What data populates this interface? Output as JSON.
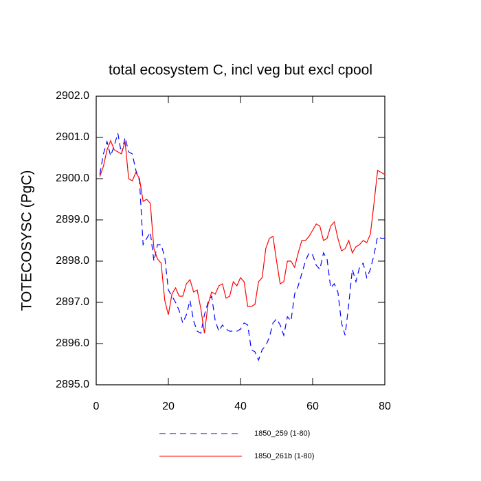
{
  "chart_data": {
    "type": "line",
    "title": "total ecosystem C, incl veg but excl cpool",
    "y_label": "TOTECOSYSC  (PgC)",
    "x": [
      1,
      2,
      3,
      4,
      5,
      6,
      7,
      8,
      9,
      10,
      11,
      12,
      13,
      14,
      15,
      16,
      17,
      18,
      19,
      20,
      21,
      22,
      23,
      24,
      25,
      26,
      27,
      28,
      29,
      30,
      31,
      32,
      33,
      34,
      35,
      36,
      37,
      38,
      39,
      40,
      41,
      42,
      43,
      44,
      45,
      46,
      47,
      48,
      49,
      50,
      51,
      52,
      53,
      54,
      55,
      56,
      57,
      58,
      59,
      60,
      61,
      62,
      63,
      64,
      65,
      66,
      67,
      68,
      69,
      70,
      71,
      72,
      73,
      74,
      75,
      76,
      77,
      78,
      79,
      80
    ],
    "series": [
      {
        "name": "1850_259 (1-80)",
        "color": "#0000ff",
        "style": "dashed",
        "values": [
          2900.1,
          2900.6,
          2900.9,
          2900.55,
          2900.8,
          2901.1,
          2900.6,
          2901.0,
          2900.65,
          2900.6,
          2900.2,
          2899.95,
          2898.4,
          2898.55,
          2898.7,
          2898.0,
          2898.4,
          2898.4,
          2898.1,
          2897.3,
          2897.15,
          2897.0,
          2896.8,
          2896.5,
          2896.7,
          2897.05,
          2896.55,
          2896.3,
          2896.25,
          2896.7,
          2897.0,
          2897.15,
          2896.55,
          2896.3,
          2896.45,
          2896.35,
          2896.3,
          2896.3,
          2896.3,
          2896.35,
          2896.5,
          2896.45,
          2895.85,
          2895.8,
          2895.6,
          2895.85,
          2895.95,
          2896.15,
          2896.5,
          2896.6,
          2896.45,
          2896.2,
          2896.65,
          2896.55,
          2897.2,
          2897.4,
          2897.7,
          2898.0,
          2898.2,
          2898.15,
          2897.9,
          2897.8,
          2898.2,
          2898.05,
          2897.35,
          2897.45,
          2897.25,
          2896.5,
          2896.2,
          2896.95,
          2897.8,
          2897.5,
          2897.85,
          2897.95,
          2897.6,
          2897.8,
          2898.15,
          2898.6,
          2898.55,
          2898.55
        ]
      },
      {
        "name": "1850_261b (1-80)",
        "color": "#ff0000",
        "style": "solid",
        "values": [
          2900.05,
          2900.3,
          2900.7,
          2900.92,
          2900.7,
          2900.65,
          2900.6,
          2900.9,
          2900.0,
          2899.95,
          2900.15,
          2900.0,
          2899.45,
          2899.5,
          2899.4,
          2898.3,
          2898.05,
          2897.95,
          2897.05,
          2896.7,
          2897.2,
          2897.35,
          2897.15,
          2897.15,
          2897.45,
          2897.55,
          2897.25,
          2897.3,
          2896.85,
          2896.25,
          2896.95,
          2897.25,
          2897.2,
          2897.4,
          2897.45,
          2897.1,
          2897.15,
          2897.5,
          2897.4,
          2897.6,
          2897.5,
          2896.9,
          2896.9,
          2896.95,
          2897.5,
          2897.6,
          2898.3,
          2898.55,
          2898.6,
          2898.0,
          2897.45,
          2897.5,
          2898.0,
          2898.0,
          2897.85,
          2898.2,
          2898.5,
          2898.5,
          2898.6,
          2898.75,
          2898.9,
          2898.85,
          2898.5,
          2898.55,
          2898.85,
          2898.95,
          2898.55,
          2898.25,
          2898.3,
          2898.5,
          2898.2,
          2898.35,
          2898.4,
          2898.5,
          2898.45,
          2898.65,
          2899.4,
          2900.2,
          2900.15,
          2900.1
        ]
      }
    ],
    "xlim": [
      0,
      80
    ],
    "xticks": [
      0,
      20,
      40,
      60,
      80
    ],
    "ylim": [
      2895,
      2902
    ],
    "yticks": [
      {
        "value": 2895,
        "label": "2895.0"
      },
      {
        "value": 2896,
        "label": "2896.0"
      },
      {
        "value": 2897,
        "label": "2897.0"
      },
      {
        "value": 2898,
        "label": "2898.0"
      },
      {
        "value": 2899,
        "label": "2899.0"
      },
      {
        "value": 2900,
        "label": "2900.0"
      },
      {
        "value": 2901,
        "label": "2901.0"
      },
      {
        "value": 2902,
        "label": "2902.0"
      }
    ]
  }
}
